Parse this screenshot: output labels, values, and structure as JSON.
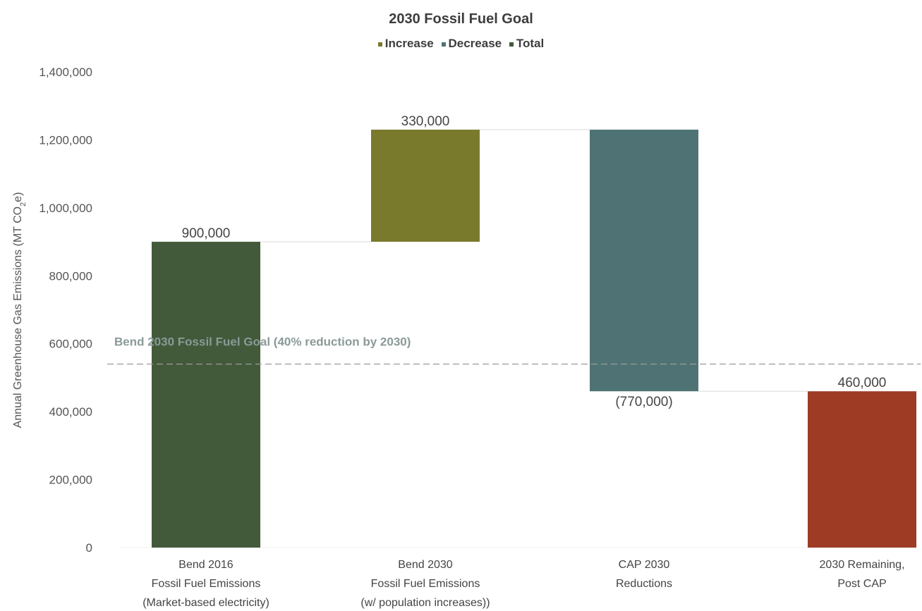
{
  "chart_data": {
    "type": "waterfall",
    "title": "2030 Fossil Fuel Goal",
    "legend": [
      {
        "label": "Increase",
        "color": "#7a7a2c"
      },
      {
        "label": "Decrease",
        "color": "#4f7374"
      },
      {
        "label": "Total",
        "color": "#425a3a"
      }
    ],
    "legend_position": "top",
    "ylabel": "Annual Greenhouse Gas Emissions (MT CO2e)",
    "ylabel_parts": {
      "pre": "Annual Greenhouse Gas Emissions (MT CO",
      "sub": "2",
      "post": "e)"
    },
    "ylim": [
      0,
      1400000
    ],
    "yticks": [
      0,
      200000,
      400000,
      600000,
      800000,
      1000000,
      1200000,
      1400000
    ],
    "ytick_labels": [
      "0",
      "200,000",
      "400,000",
      "600,000",
      "800,000",
      "1,000,000",
      "1,200,000",
      "1,400,000"
    ],
    "grid": false,
    "categories": [
      [
        "Bend 2016",
        "Fossil Fuel Emissions",
        "(Market-based electricity)"
      ],
      [
        "Bend 2030",
        "Fossil Fuel Emissions",
        "(w/ population increases))"
      ],
      [
        "CAP 2030",
        "Reductions"
      ],
      [
        "2030 Remaining,",
        "Post CAP"
      ]
    ],
    "bars": [
      {
        "kind": "total",
        "start": 0,
        "end": 900000,
        "label": "900,000",
        "color": "#425a3a"
      },
      {
        "kind": "increase",
        "start": 900000,
        "end": 1230000,
        "label": "330,000",
        "color": "#7a7a2c"
      },
      {
        "kind": "decrease",
        "start": 1230000,
        "end": 460000,
        "label": "(770,000)",
        "color": "#4f7374"
      },
      {
        "kind": "total",
        "start": 0,
        "end": 460000,
        "label": "460,000",
        "color": "#9e3b25"
      }
    ],
    "goal_line": {
      "value": 540000,
      "label": "Bend 2030 Fossil Fuel Goal (40% reduction by 2030)",
      "color": "#8a9a98"
    }
  }
}
